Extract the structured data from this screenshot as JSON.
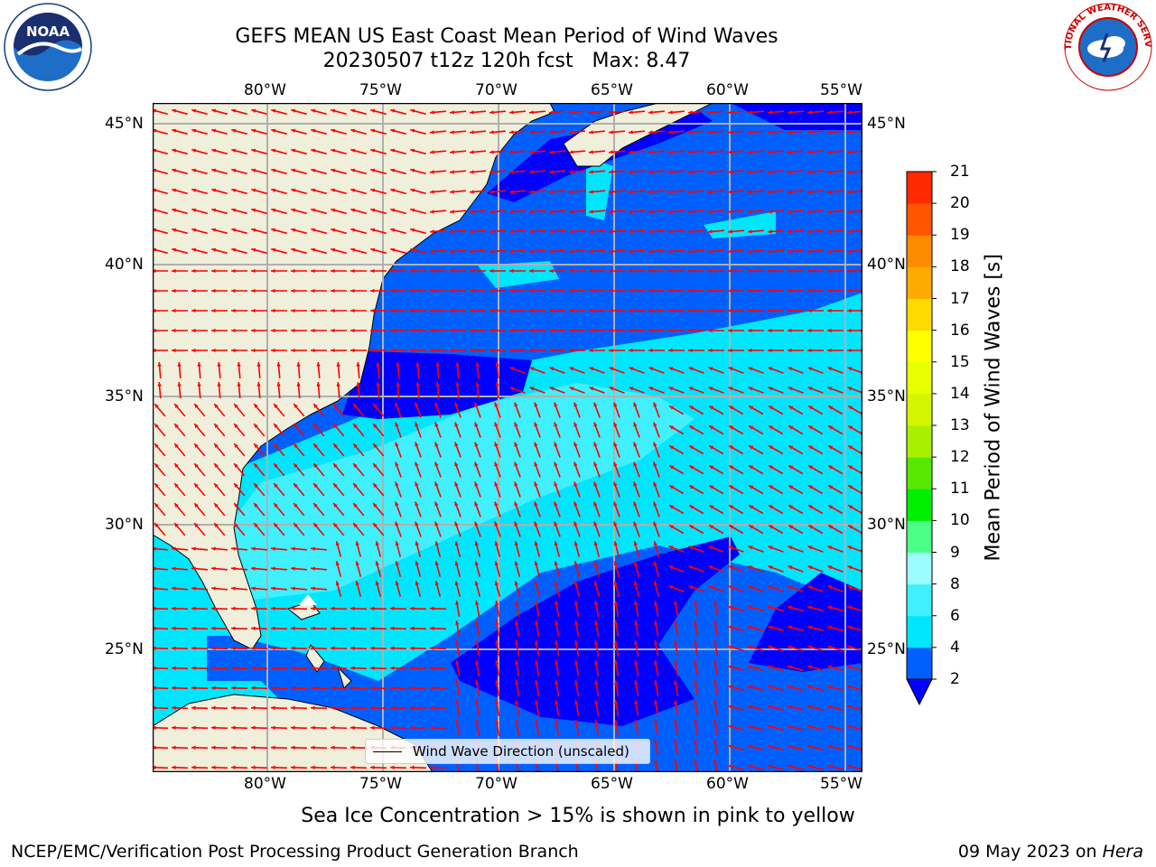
{
  "title_line1": "GEFS MEAN US East Coast Mean Period of Wind Waves",
  "title_line2": "20230507 t12z 120h fcst   Max: 8.47",
  "footer_left": "NCEP/EMC/Verification Post Processing Product Generation Branch",
  "footer_right_date": "09 May 2023 on ",
  "footer_right_machine": "Hera",
  "subtitle": "Sea Ice Concentration > 15% is shown in pink to yellow",
  "legend_label": "Wind Wave Direction (unscaled)",
  "logos": {
    "left": "NOAA",
    "right": "NATIONAL WEATHER SERVICE"
  },
  "map": {
    "lon_ticks": [
      "80°W",
      "75°W",
      "70°W",
      "65°W",
      "60°W",
      "55°W"
    ],
    "lat_ticks": [
      "45°N",
      "40°N",
      "35°N",
      "30°N",
      "25°N"
    ],
    "arrow_color": "#ff0000",
    "land_color": "#efefdc",
    "grid_color": "#b0b0b0"
  },
  "colorbar": {
    "title": "Mean Period of Wind Waves [s]",
    "ticks": [
      "2",
      "4",
      "6",
      "8",
      "9",
      "10",
      "11",
      "12",
      "13",
      "14",
      "15",
      "16",
      "17",
      "18",
      "19",
      "20",
      "21"
    ],
    "colors": [
      "#0060ff",
      "#00e6ff",
      "#40f0ff",
      "#9cfcff",
      "#4cff86",
      "#00ef00",
      "#56e800",
      "#a8f000",
      "#d4f500",
      "#e8ff00",
      "#ffff00",
      "#ffda00",
      "#ffaa00",
      "#ff8c00",
      "#ff5500",
      "#ff2a00",
      "#ff0000"
    ],
    "extend_color": "#0000ff"
  }
}
